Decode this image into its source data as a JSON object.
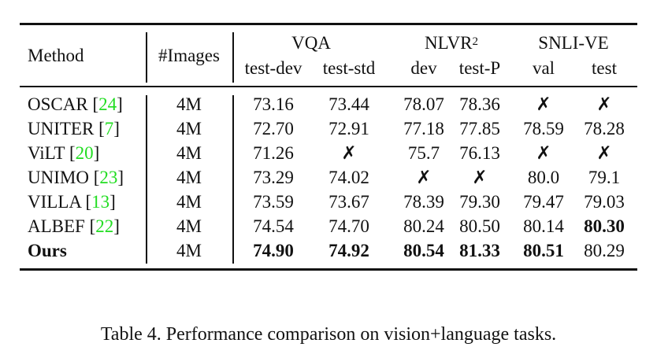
{
  "table": {
    "headers": {
      "method": "Method",
      "images": "#Images",
      "groups": [
        {
          "label": "VQA",
          "sup": "",
          "subs": [
            "test-dev",
            "test-std"
          ]
        },
        {
          "label": "NLVR",
          "sup": "2",
          "subs": [
            "dev",
            "test-P"
          ]
        },
        {
          "label": "SNLI-VE",
          "sup": "",
          "subs": [
            "val",
            "test"
          ]
        }
      ]
    },
    "rows": [
      {
        "method": "OSCAR",
        "ref": "24",
        "images": "4M",
        "bold_method": false,
        "values": [
          {
            "v": "73.16",
            "bold": false
          },
          {
            "v": "73.44",
            "bold": false
          },
          {
            "v": "78.07",
            "bold": false
          },
          {
            "v": "78.36",
            "bold": false
          },
          {
            "v": "✗",
            "bold": false
          },
          {
            "v": "✗",
            "bold": false
          }
        ]
      },
      {
        "method": "UNITER",
        "ref": "7",
        "images": "4M",
        "bold_method": false,
        "values": [
          {
            "v": "72.70",
            "bold": false
          },
          {
            "v": "72.91",
            "bold": false
          },
          {
            "v": "77.18",
            "bold": false
          },
          {
            "v": "77.85",
            "bold": false
          },
          {
            "v": "78.59",
            "bold": false
          },
          {
            "v": "78.28",
            "bold": false
          }
        ]
      },
      {
        "method": "ViLT",
        "ref": "20",
        "images": "4M",
        "bold_method": false,
        "values": [
          {
            "v": "71.26",
            "bold": false
          },
          {
            "v": "✗",
            "bold": false
          },
          {
            "v": "75.7",
            "bold": false
          },
          {
            "v": "76.13",
            "bold": false
          },
          {
            "v": "✗",
            "bold": false
          },
          {
            "v": "✗",
            "bold": false
          }
        ]
      },
      {
        "method": "UNIMO",
        "ref": "23",
        "images": "4M",
        "bold_method": false,
        "values": [
          {
            "v": "73.29",
            "bold": false
          },
          {
            "v": "74.02",
            "bold": false
          },
          {
            "v": "✗",
            "bold": false
          },
          {
            "v": "✗",
            "bold": false
          },
          {
            "v": "80.0",
            "bold": false
          },
          {
            "v": "79.1",
            "bold": false
          }
        ]
      },
      {
        "method": "VILLA",
        "ref": "13",
        "images": "4M",
        "bold_method": false,
        "values": [
          {
            "v": "73.59",
            "bold": false
          },
          {
            "v": "73.67",
            "bold": false
          },
          {
            "v": "78.39",
            "bold": false
          },
          {
            "v": "79.30",
            "bold": false
          },
          {
            "v": "79.47",
            "bold": false
          },
          {
            "v": "79.03",
            "bold": false
          }
        ]
      },
      {
        "method": "ALBEF",
        "ref": "22",
        "images": "4M",
        "bold_method": false,
        "values": [
          {
            "v": "74.54",
            "bold": false
          },
          {
            "v": "74.70",
            "bold": false
          },
          {
            "v": "80.24",
            "bold": false
          },
          {
            "v": "80.50",
            "bold": false
          },
          {
            "v": "80.14",
            "bold": false
          },
          {
            "v": "80.30",
            "bold": true
          }
        ]
      },
      {
        "method": "Ours",
        "ref": "",
        "images": "4M",
        "bold_method": true,
        "values": [
          {
            "v": "74.90",
            "bold": true
          },
          {
            "v": "74.92",
            "bold": true
          },
          {
            "v": "80.54",
            "bold": true
          },
          {
            "v": "81.33",
            "bold": true
          },
          {
            "v": "80.51",
            "bold": true
          },
          {
            "v": "80.29",
            "bold": false
          }
        ]
      }
    ]
  },
  "caption": "Table 4. Performance comparison on vision+language tasks.",
  "colors": {
    "citation": "#22dd22",
    "text": "#111111"
  }
}
